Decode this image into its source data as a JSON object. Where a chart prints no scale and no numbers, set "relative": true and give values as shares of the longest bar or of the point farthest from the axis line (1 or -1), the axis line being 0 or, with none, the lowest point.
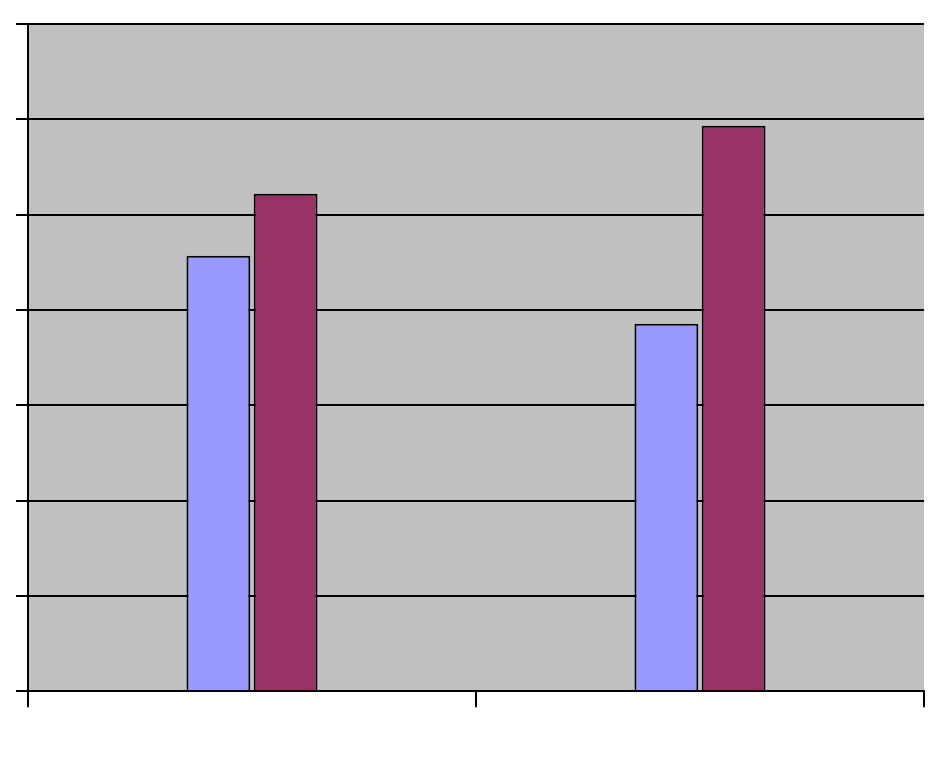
{
  "chart_data": {
    "type": "bar",
    "relative": true,
    "categories": [
      null,
      null
    ],
    "series": [
      {
        "color": "#9999ff",
        "values": [
          0.77,
          0.65
        ]
      },
      {
        "color": "#993366",
        "values": [
          0.88,
          1
        ]
      }
    ],
    "grid": "y"
  }
}
